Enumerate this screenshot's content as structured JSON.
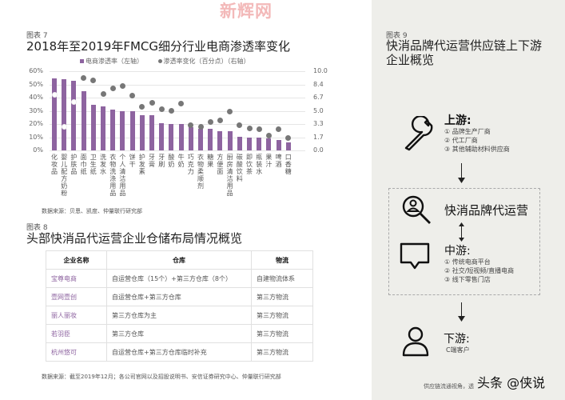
{
  "watermark": "新辉网",
  "figure7": {
    "label": "图表 7",
    "title": "2018年至2019年FMCG细分行业电商渗透率变化",
    "legend": [
      "电商渗透率（左轴）",
      "渗透率变化（百分点）（右轴）"
    ],
    "source": "数据来源：贝恩、凯度、仲量联行研究部"
  },
  "chart_data": {
    "type": "bar",
    "title": "2018年至2019年FMCG细分行业电商渗透率变化",
    "categories": [
      "化妆品",
      "婴儿配方奶粉",
      "护肤品",
      "面巾纸",
      "卫生纸",
      "洗发水",
      "衣物洗涤用品",
      "个人清洁用品",
      "饼干",
      "护发素",
      "牙膏",
      "牙刷",
      "酸奶",
      "牛奶",
      "巧克力",
      "衣物柔顺剂",
      "糖果",
      "方便面",
      "厨房清洁用品",
      "碳酸饮料",
      "即饮茶",
      "瓶装水",
      "果汁",
      "啤酒",
      "口香糖"
    ],
    "series": [
      {
        "name": "电商渗透率（左轴）",
        "type": "bar",
        "axis": "left",
        "color": "#8e64a0",
        "values": [
          54.7,
          53.7,
          52.7,
          44.8,
          34.5,
          33.5,
          30.7,
          29.9,
          29.5,
          26.7,
          26.7,
          20.4,
          20.0,
          20.0,
          17.5,
          16.5,
          16.3,
          14.5,
          14.3,
          10.5,
          10.0,
          10.0,
          9.0,
          8.0,
          6.0
        ]
      },
      {
        "name": "渗透率变化（百分点）（右轴）",
        "type": "scatter",
        "axis": "right",
        "color": "#777777",
        "values": [
          7.0,
          3.0,
          6.1,
          9.1,
          8.8,
          7.1,
          7.8,
          8.1,
          6.9,
          5.5,
          6.0,
          5.2,
          5.0,
          5.9,
          3.2,
          3.0,
          3.6,
          3.8,
          4.9,
          3.2,
          2.8,
          2.7,
          1.9,
          2.7,
          1.6
        ]
      }
    ],
    "left_axis": {
      "ticks": [
        "0%",
        "10%",
        "20%",
        "30%",
        "40%",
        "50%",
        "60%"
      ],
      "ylim": [
        0,
        60
      ]
    },
    "right_axis": {
      "ticks": [
        "0.0",
        "1.7",
        "3.3",
        "5.0",
        "6.7",
        "8.4",
        "10.0"
      ],
      "ylim": [
        0,
        10
      ]
    },
    "grid": true,
    "legend_position": "top"
  },
  "figure8": {
    "label": "图表 8",
    "title": "头部快消品代运营企业仓储布局情况概览",
    "headers": [
      "企业名称",
      "仓库",
      "物流"
    ],
    "rows": [
      [
        "宝尊电商",
        "自运营仓库（15个）+第三方仓库（8个）",
        "自建物流体系"
      ],
      [
        "壹网壹创",
        "自运营仓库+第三方仓库",
        "第三方物流"
      ],
      [
        "丽人丽妆",
        "第三方仓库为主",
        "第三方物流"
      ],
      [
        "若羽臣",
        "第三方仓库",
        "第三方物流"
      ],
      [
        "杭州悠可",
        "自运营仓库+第三方仓库临时补充",
        "第三方物流"
      ]
    ],
    "source": "数据来源：截至2019年12月；各公司官网以及招股说明书、安信证券研究中心、仲量联行研究部"
  },
  "figure9": {
    "label": "图表 9",
    "title": "快消品牌代运营供应链上下游企业概览",
    "upstream": {
      "title": "上游:",
      "items": [
        "① 品牌生产厂商",
        "② 代工厂商",
        "③ 其他辅助材料供应商"
      ]
    },
    "center": {
      "title": "快消品牌代运营"
    },
    "midstream": {
      "title": "中游:",
      "items": [
        "① 传统电商平台",
        "② 社交/短视频/直播电商",
        "③ 线下零售门店"
      ]
    },
    "downstream": {
      "title": "下游:",
      "items": [
        "C端客户"
      ]
    },
    "footer": "供应链流通视角，透",
    "toutiao": "头条 @侠说"
  }
}
